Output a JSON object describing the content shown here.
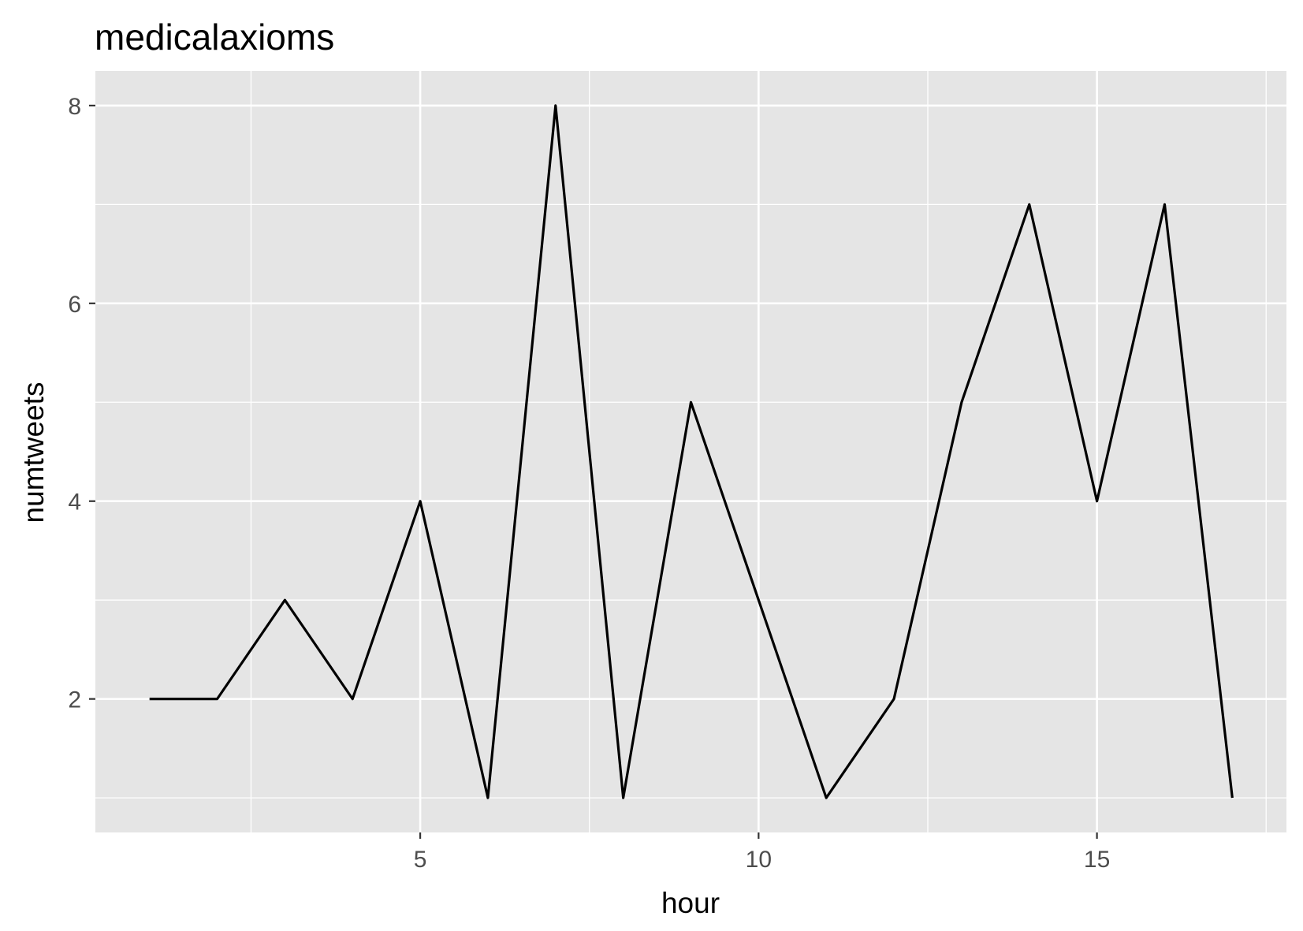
{
  "chart_data": {
    "type": "line",
    "title": "medicalaxioms",
    "xlabel": "hour",
    "ylabel": "numtweets",
    "x": [
      1,
      2,
      3,
      4,
      5,
      6,
      7,
      8,
      9,
      10,
      11,
      12,
      13,
      14,
      15,
      16,
      17
    ],
    "series": [
      {
        "values": [
          2,
          2,
          3,
          2,
          4,
          1,
          8,
          1,
          5,
          3,
          1,
          2,
          5,
          7,
          4,
          7,
          1
        ]
      }
    ],
    "xlim": [
      0.2,
      17.8
    ],
    "ylim": [
      0.65,
      8.35
    ],
    "x_major_ticks": [
      5,
      10,
      15
    ],
    "x_minor_ticks": [
      2.5,
      7.5,
      12.5,
      17.5
    ],
    "y_major_ticks": [
      2,
      4,
      6,
      8
    ],
    "y_minor_ticks": [
      1,
      3,
      5,
      7
    ],
    "grid": true,
    "legend": "none",
    "colors": {
      "panel": "#e5e5e5",
      "grid": "#ffffff",
      "line": "#000000",
      "tick_text": "#4d4d4d"
    }
  }
}
